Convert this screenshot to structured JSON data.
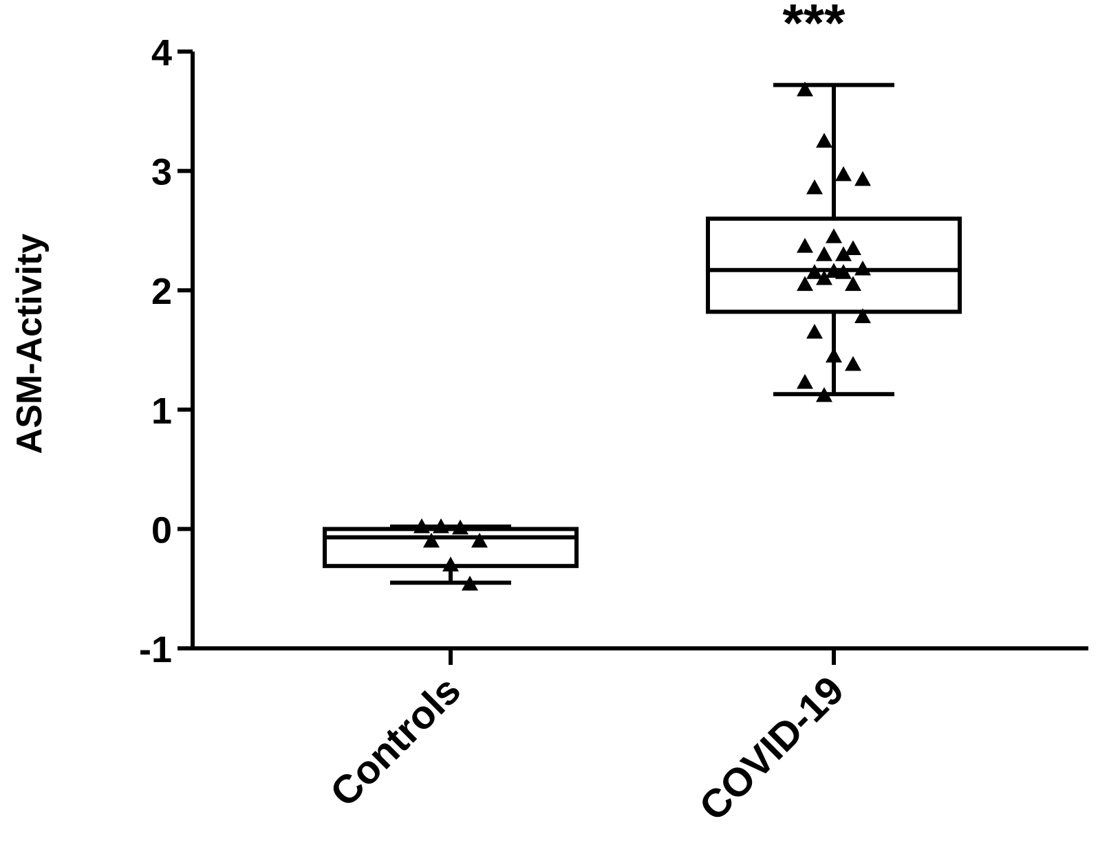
{
  "chart_data": {
    "type": "box",
    "ylabel": "ASM-Activity",
    "ylim": [
      -1,
      4
    ],
    "yticks": [
      "-1",
      "0",
      "1",
      "2",
      "3",
      "4"
    ],
    "categories": [
      "Controls",
      "COVID-19"
    ],
    "significance": "***",
    "grid": false,
    "boxes": [
      {
        "category": "Controls",
        "min": -0.45,
        "q1": -0.31,
        "median": -0.07,
        "q3": 0.0,
        "max": 0.02,
        "points": [
          0.02,
          0.02,
          0.01,
          -0.1,
          -0.1,
          -0.3,
          -0.46
        ]
      },
      {
        "category": "COVID-19",
        "min": 1.13,
        "q1": 1.82,
        "median": 2.17,
        "q3": 2.6,
        "max": 3.72,
        "points": [
          3.68,
          3.25,
          2.97,
          2.93,
          2.86,
          2.45,
          2.35,
          2.37,
          2.3,
          2.3,
          2.18,
          2.15,
          2.16,
          2.05,
          2.05,
          2.1,
          2.15,
          1.78,
          1.65,
          1.45,
          1.38,
          1.23,
          1.12
        ]
      }
    ]
  }
}
